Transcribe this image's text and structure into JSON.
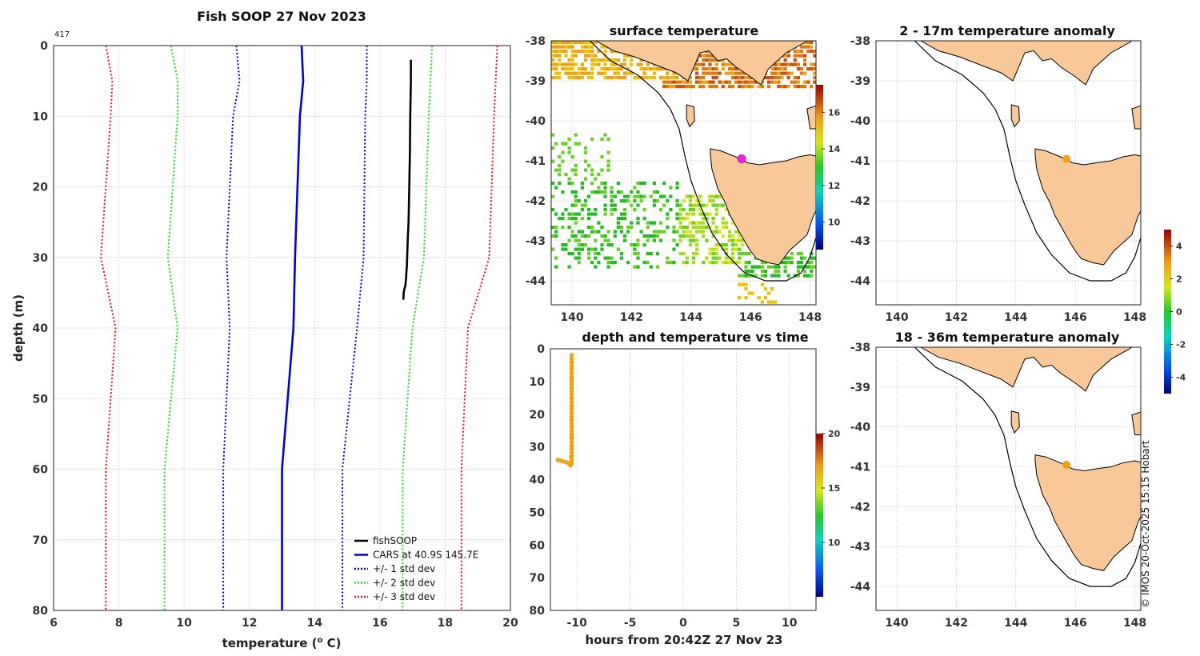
{
  "chart_data": [
    {
      "type": "line",
      "title": "Fish SOOP 27 Nov 2023",
      "corner_label": "417",
      "xlabel": "temperature (",
      "xlabel_sup": "o",
      "xlabel_end": " C)",
      "ylabel": "depth (m)",
      "xlim": [
        6,
        20
      ],
      "ylim": [
        80,
        0
      ],
      "xticks": [
        "6",
        "8",
        "10",
        "12",
        "14",
        "16",
        "18",
        "20"
      ],
      "yticks": [
        "0",
        "10",
        "20",
        "30",
        "40",
        "50",
        "60",
        "70",
        "80"
      ],
      "legend": [
        "fishSOOP",
        "CARS at 40.9S 145.7E",
        "+/- 1 std dev",
        "+/- 2 std dev",
        "+/- 3 std dev"
      ],
      "series": [
        {
          "name": "fishSOOP",
          "color": "#000000",
          "style": "solid",
          "temp": [
            16.95,
            16.95,
            16.93,
            16.92,
            16.9,
            16.88,
            16.85,
            16.83,
            16.8,
            16.78,
            16.75,
            16.73,
            16.72
          ],
          "depth": [
            2,
            5,
            10,
            15,
            20,
            25,
            28,
            31,
            33,
            34,
            34.5,
            35,
            36
          ]
        },
        {
          "name": "CARS mean",
          "color": "#0000dd",
          "style": "solid",
          "temp": [
            13.6,
            13.65,
            13.55,
            13.4,
            13.35,
            13.0,
            13.0
          ],
          "depth": [
            0,
            5,
            10,
            30,
            40,
            60,
            80
          ]
        },
        {
          "name": "-1 std",
          "color": "#0000dd",
          "style": "dotted",
          "temp": [
            11.6,
            11.7,
            11.5,
            11.3,
            11.4,
            11.2,
            11.2
          ],
          "depth": [
            0,
            5,
            10,
            30,
            40,
            60,
            80
          ]
        },
        {
          "name": "+1 std",
          "color": "#0000dd",
          "style": "dotted",
          "temp": [
            15.6,
            15.6,
            15.55,
            15.5,
            15.3,
            14.85,
            14.85
          ],
          "depth": [
            0,
            5,
            10,
            30,
            40,
            60,
            80
          ]
        },
        {
          "name": "-2 std",
          "color": "#22dd22",
          "style": "dotted",
          "temp": [
            9.6,
            9.8,
            9.8,
            9.5,
            9.8,
            9.4,
            9.4
          ],
          "depth": [
            0,
            5,
            10,
            30,
            40,
            60,
            80
          ]
        },
        {
          "name": "+2 std",
          "color": "#22dd22",
          "style": "dotted",
          "temp": [
            17.6,
            17.55,
            17.5,
            17.35,
            17.0,
            16.7,
            16.7
          ],
          "depth": [
            0,
            5,
            10,
            30,
            40,
            60,
            80
          ]
        },
        {
          "name": "-3 std",
          "color": "#ee1111",
          "style": "dotted",
          "temp": [
            7.6,
            7.8,
            7.75,
            7.45,
            7.9,
            7.6,
            7.6
          ],
          "depth": [
            0,
            5,
            10,
            30,
            40,
            60,
            80
          ]
        },
        {
          "name": "+3 std",
          "color": "#ee1111",
          "style": "dotted",
          "temp": [
            19.6,
            19.55,
            19.5,
            19.35,
            18.7,
            18.5,
            18.5
          ],
          "depth": [
            0,
            5,
            10,
            30,
            40,
            60,
            80
          ]
        }
      ]
    },
    {
      "type": "heatmap",
      "title": "surface temperature",
      "xlim": [
        139.3,
        148.2
      ],
      "ylim": [
        -44.6,
        -38
      ],
      "xticks": [
        "140",
        "142",
        "144",
        "146",
        "148"
      ],
      "yticks": [
        "-38",
        "-39",
        "-40",
        "-41",
        "-42",
        "-43",
        "-44"
      ],
      "colorbar_ticks": [
        "16",
        "14",
        "12",
        "10"
      ],
      "colorbar_range": [
        8.5,
        17.5
      ],
      "marker": {
        "lon": 145.7,
        "lat": -40.95,
        "color": "#ee22ee"
      }
    },
    {
      "type": "scatter",
      "title": "depth and temperature vs time",
      "xlabel": "hours from 20:42Z 27 Nov 23",
      "xlim": [
        -12.5,
        12.5
      ],
      "ylim": [
        80,
        0
      ],
      "xticks": [
        "-10",
        "-5",
        "0",
        "5",
        "10"
      ],
      "yticks": [
        "0",
        "10",
        "20",
        "30",
        "40",
        "50",
        "60",
        "70",
        "80"
      ],
      "colorbar_ticks": [
        "20",
        "15",
        "10"
      ],
      "colorbar_range": [
        5,
        20
      ],
      "points_color": "#f0a010",
      "x": [
        -11.8,
        -11.5,
        -11.2,
        -10.9,
        -10.7,
        -10.6,
        -10.55,
        -10.5,
        -10.5,
        -10.5,
        -10.5,
        -10.5,
        -10.5,
        -10.5,
        -10.5,
        -10.5,
        -10.5,
        -10.5
      ],
      "y": [
        34,
        34.2,
        34.5,
        34.8,
        35.2,
        35.6,
        33,
        30,
        27,
        24,
        21,
        18,
        15,
        12,
        9,
        6,
        4,
        2
      ]
    },
    {
      "type": "heatmap",
      "title": "2 - 17m temperature anomaly",
      "xlim": [
        139.3,
        148.2
      ],
      "ylim": [
        -44.6,
        -38
      ],
      "xticks": [
        "140",
        "142",
        "144",
        "146",
        "148"
      ],
      "yticks": [
        "-38",
        "-39",
        "-40",
        "-41",
        "-42",
        "-43",
        "-44"
      ],
      "marker": {
        "lon": 145.7,
        "lat": -40.95,
        "color": "#f0a010"
      }
    },
    {
      "type": "heatmap",
      "title": "18 - 36m temperature anomaly",
      "xlim": [
        139.3,
        148.2
      ],
      "ylim": [
        -44.6,
        -38
      ],
      "xticks": [
        "140",
        "142",
        "144",
        "146",
        "148"
      ],
      "yticks": [
        "-38",
        "-39",
        "-40",
        "-41",
        "-42",
        "-43",
        "-44"
      ],
      "marker": {
        "lon": 145.7,
        "lat": -40.95,
        "color": "#f0a010"
      },
      "colorbar_ticks": [
        "4",
        "2",
        "0",
        "-2",
        "-4"
      ],
      "colorbar_range": [
        -5,
        5
      ]
    }
  ],
  "credit": "© IMOS 20-Oct-2025 15:15 Hobart",
  "colors": {
    "land": "#f9c898",
    "coast": "#000000"
  }
}
